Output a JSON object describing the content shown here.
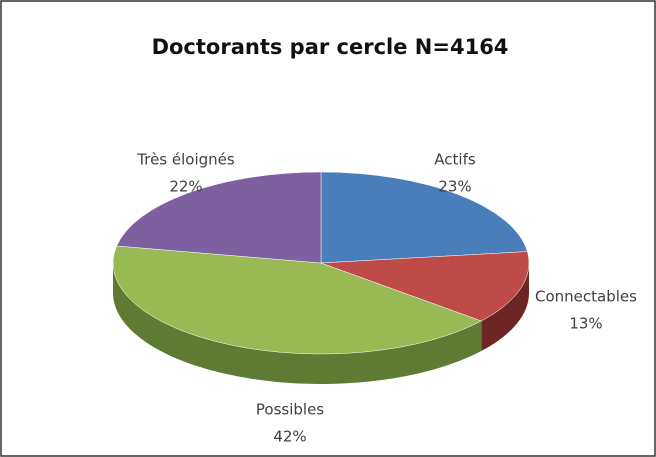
{
  "chart_data": {
    "type": "pie",
    "title": "Doctorants par cercle N=4164",
    "categories": [
      "Actifs",
      "Connectables",
      "Possibles",
      "Très éloignés"
    ],
    "values": [
      23,
      13,
      42,
      22
    ],
    "value_labels": [
      "23%",
      "13%",
      "42%",
      "22%"
    ],
    "colors": [
      "#4a7ebb",
      "#be4b48",
      "#98b954",
      "#7d60a0"
    ],
    "side_colors": [
      "#2f5a8f",
      "#6e2624",
      "#5f7a33",
      "#54407a"
    ]
  }
}
